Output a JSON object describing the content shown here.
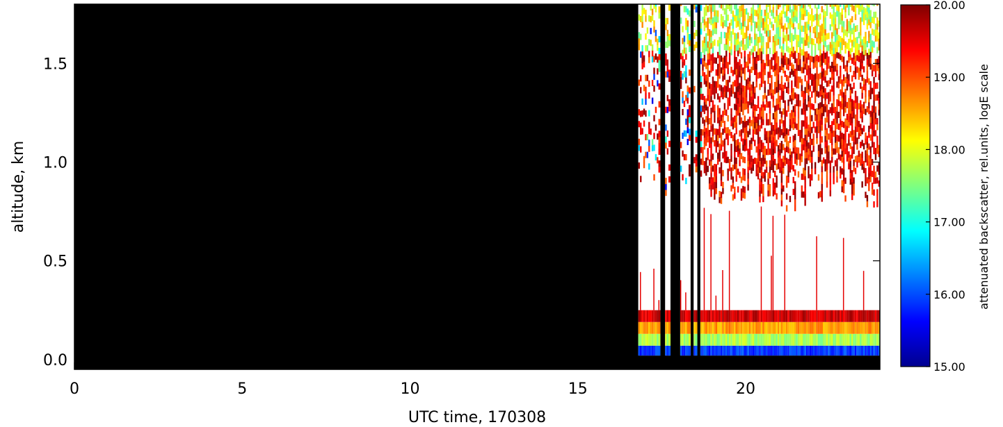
{
  "chart_data": {
    "type": "heatmap",
    "title": "",
    "xlabel": "UTC time, 170308",
    "ylabel": "altitude, km",
    "xlim": [
      0,
      24
    ],
    "ylim": [
      -0.05,
      1.8
    ],
    "x_ticks": [
      {
        "value": 0,
        "label": "0"
      },
      {
        "value": 5,
        "label": "5"
      },
      {
        "value": 10,
        "label": "10"
      },
      {
        "value": 15,
        "label": "15"
      },
      {
        "value": 20,
        "label": "20"
      }
    ],
    "y_ticks": [
      {
        "value": 0.0,
        "label": "0.0"
      },
      {
        "value": 0.5,
        "label": "0.5"
      },
      {
        "value": 1.0,
        "label": "1.0"
      },
      {
        "value": 1.5,
        "label": "1.5"
      }
    ],
    "data_start_time": 16.8,
    "no_data_color": "#000000",
    "no_signal_color": "#ffffff",
    "colorbar": {
      "title": "attenuated backscatter, rel.units, logE scale",
      "range": [
        15.0,
        20.0
      ],
      "tick_labels": [
        {
          "value": 15.0,
          "label": "15.00"
        },
        {
          "value": 16.0,
          "label": "16.00"
        },
        {
          "value": 17.0,
          "label": "17.00"
        },
        {
          "value": 18.0,
          "label": "18.00"
        },
        {
          "value": 19.0,
          "label": "19.00"
        },
        {
          "value": 20.0,
          "label": "20.00"
        }
      ],
      "colormap": "jet"
    },
    "gaps": [
      [
        17.45,
        17.6
      ],
      [
        17.75,
        18.05
      ],
      [
        18.35,
        18.45
      ],
      [
        18.55,
        18.65
      ]
    ],
    "surface_layers": [
      {
        "ymin": 0.02,
        "ymax": 0.07,
        "value": 15.9
      },
      {
        "ymin": 0.07,
        "ymax": 0.13,
        "value": 17.7
      },
      {
        "ymin": 0.13,
        "ymax": 0.19,
        "value": 18.6
      },
      {
        "ymin": 0.19,
        "ymax": 0.25,
        "value": 19.6
      }
    ],
    "cloud_region": {
      "ymin": 0.75,
      "ymax": 1.8,
      "top_value": 17.7,
      "mid_value": 19.4
    }
  }
}
